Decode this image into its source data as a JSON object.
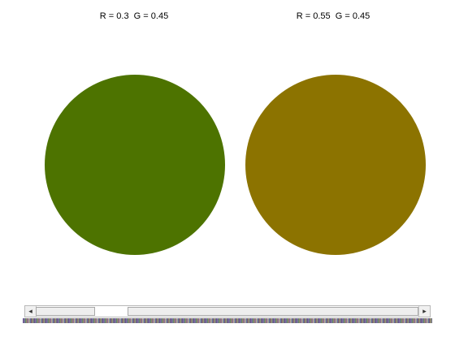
{
  "panels": {
    "left": {
      "caption": "R = 0.3  G = 0.45",
      "color": "#4d7300"
    },
    "right": {
      "caption": "R = 0.55  G = 0.45",
      "color": "#8c7300"
    }
  },
  "scrollbar": {
    "left_arrow": "◂",
    "right_arrow": "▸"
  }
}
